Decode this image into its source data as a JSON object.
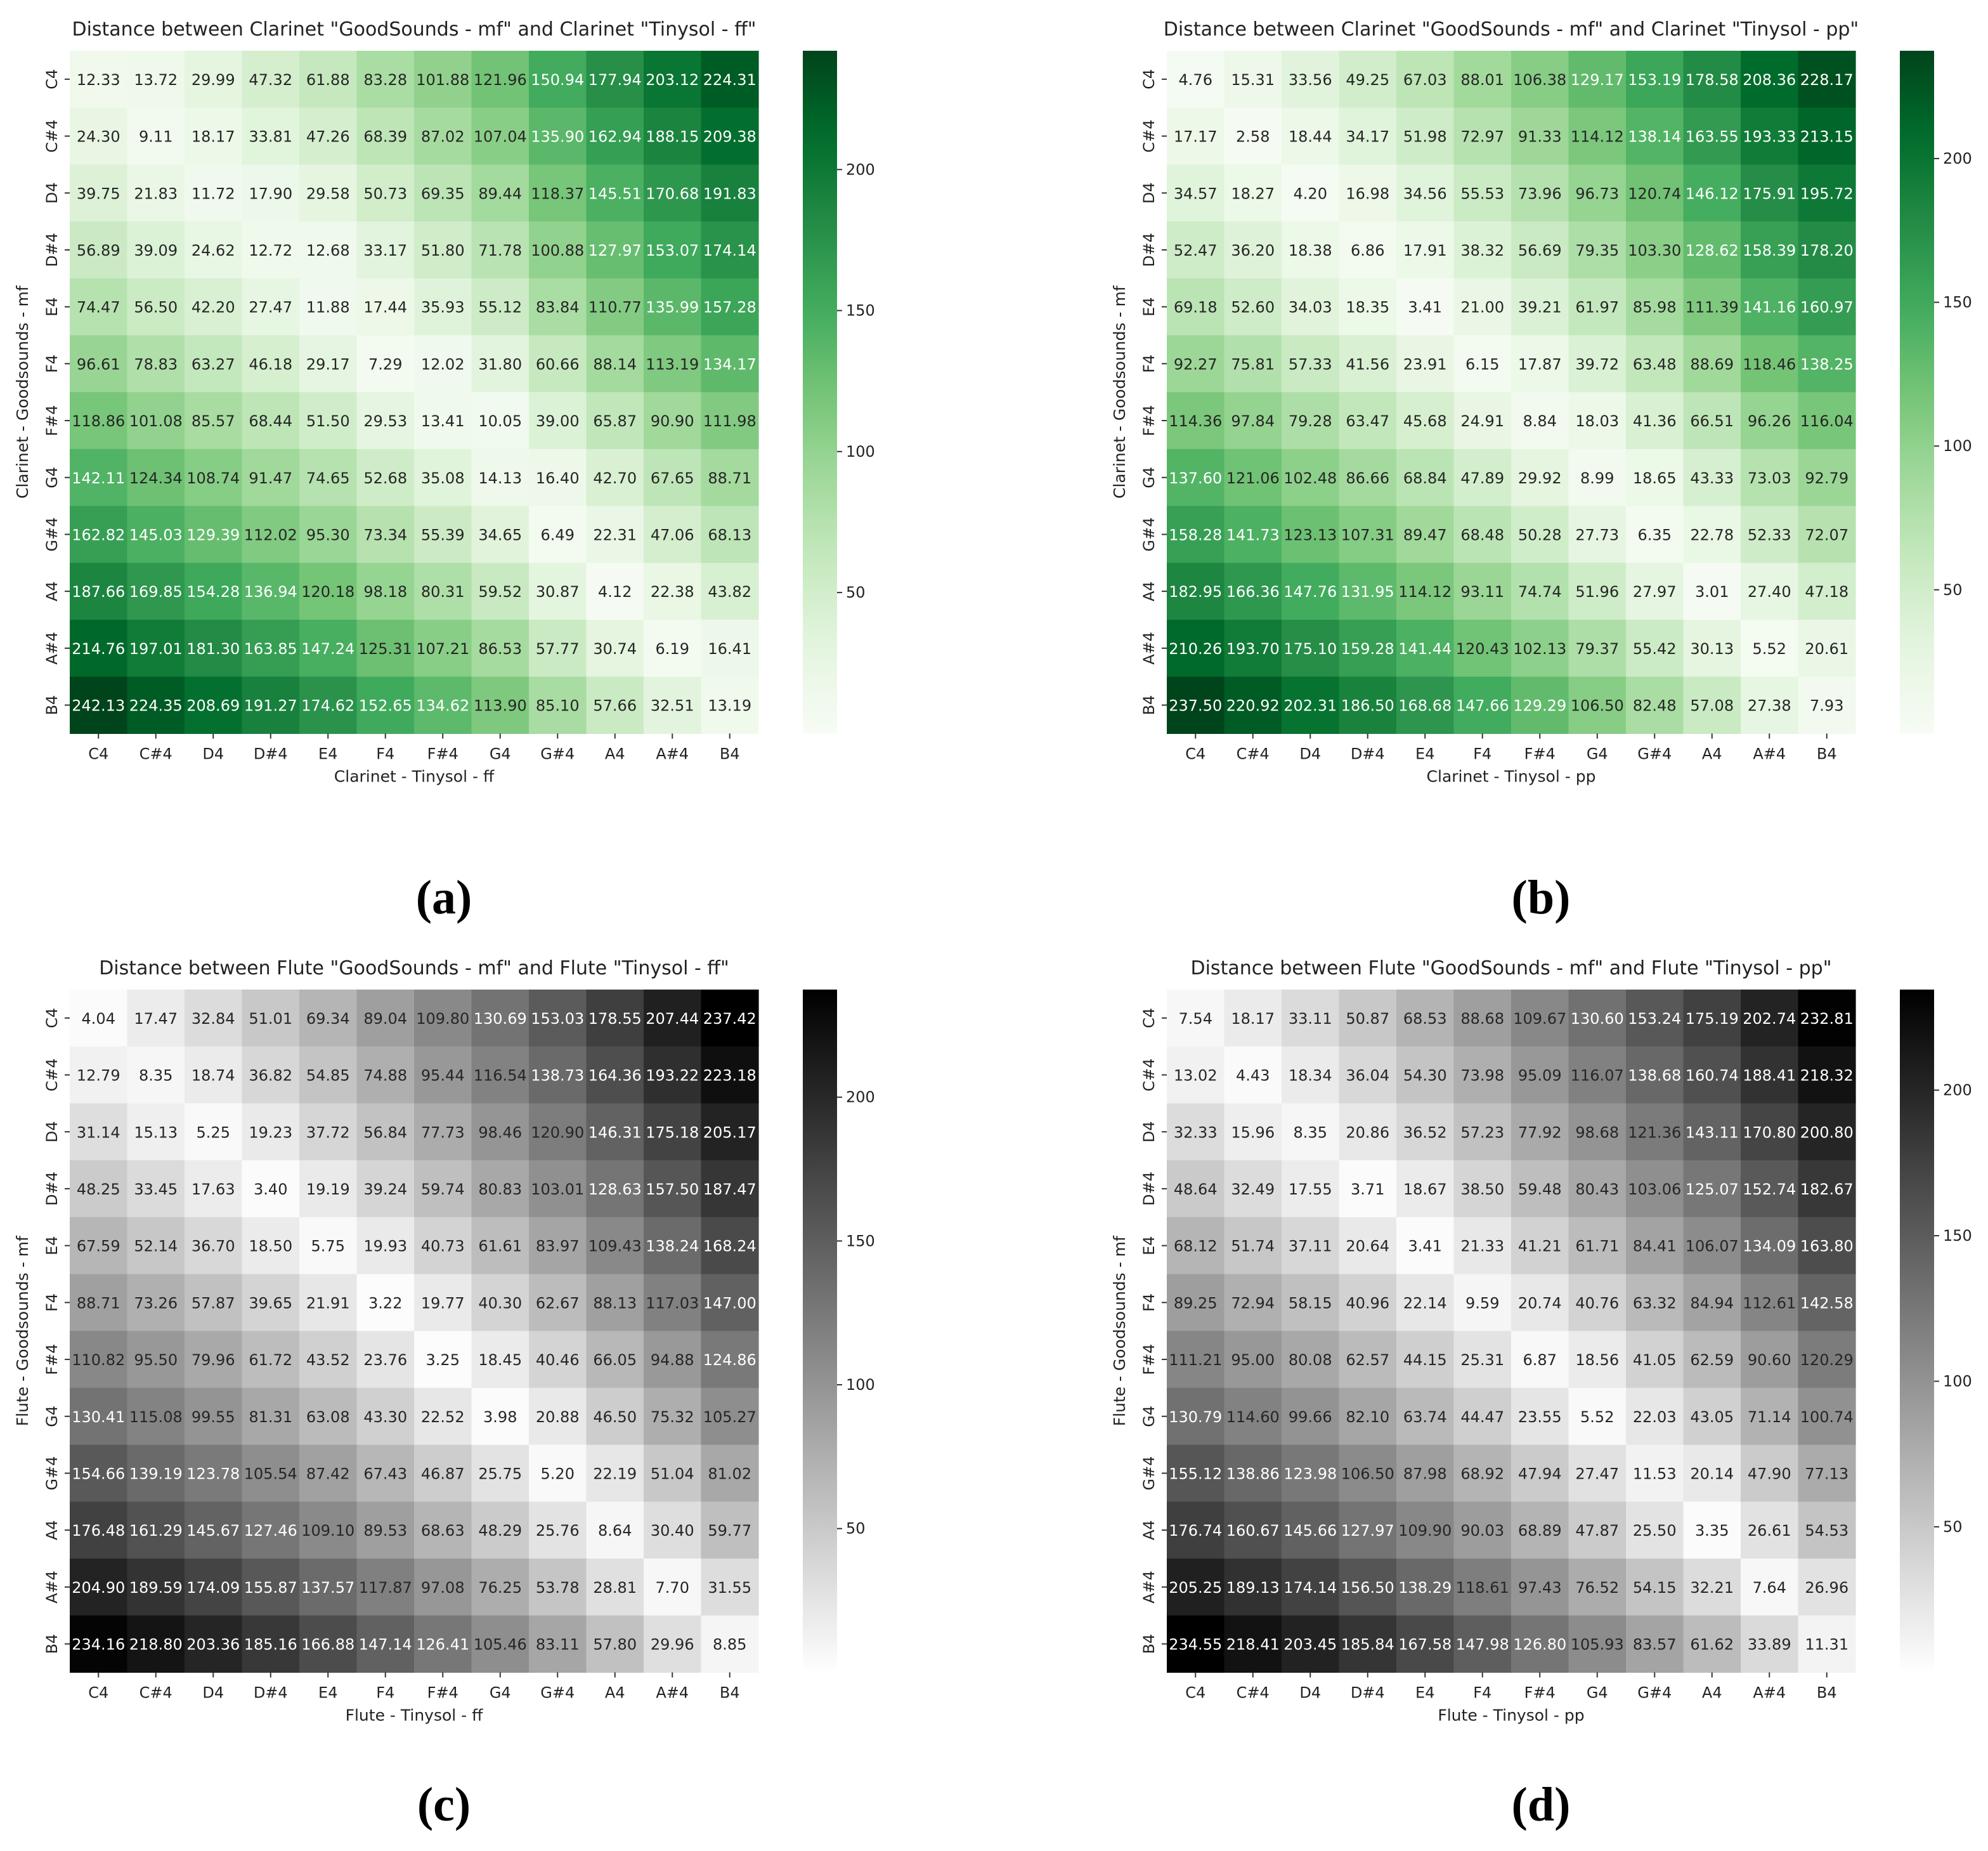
{
  "figure": {
    "panel_labels": [
      "(a)",
      "(b)",
      "(c)",
      "(d)"
    ]
  },
  "chart_data": [
    {
      "type": "heatmap",
      "title": "Distance between  Clarinet \"GoodSounds - mf\" and Clarinet \"Tinysol - ff\"",
      "xlabel": "Clarinet - Tinysol - ff",
      "ylabel": "Clarinet - Goodsounds - mf",
      "x_categories": [
        "C4",
        "C#4",
        "D4",
        "D#4",
        "E4",
        "F4",
        "F#4",
        "G4",
        "G#4",
        "A4",
        "A#4",
        "B4"
      ],
      "y_categories": [
        "C4",
        "C#4",
        "D4",
        "D#4",
        "E4",
        "F4",
        "F#4",
        "G4",
        "G#4",
        "A4",
        "A#4",
        "B4"
      ],
      "colormap": "Greens",
      "color_low": "#f7fcf5",
      "color_high": "#00441b",
      "vmin": 0,
      "vmax": 242.13,
      "colorbar_ticks": [
        50,
        100,
        150,
        200
      ],
      "values": [
        [
          12.33,
          13.72,
          29.99,
          47.32,
          61.88,
          83.28,
          101.88,
          121.96,
          150.94,
          177.94,
          203.12,
          224.31
        ],
        [
          24.3,
          9.11,
          18.17,
          33.81,
          47.26,
          68.39,
          87.02,
          107.04,
          135.9,
          162.94,
          188.15,
          209.38
        ],
        [
          39.75,
          21.83,
          11.72,
          17.9,
          29.58,
          50.73,
          69.35,
          89.44,
          118.37,
          145.51,
          170.68,
          191.83
        ],
        [
          56.89,
          39.09,
          24.62,
          12.72,
          12.68,
          33.17,
          51.8,
          71.78,
          100.88,
          127.97,
          153.07,
          174.14
        ],
        [
          74.47,
          56.5,
          42.2,
          27.47,
          11.88,
          17.44,
          35.93,
          55.12,
          83.84,
          110.77,
          135.99,
          157.28
        ],
        [
          96.61,
          78.83,
          63.27,
          46.18,
          29.17,
          7.29,
          12.02,
          31.8,
          60.66,
          88.14,
          113.19,
          134.17
        ],
        [
          118.86,
          101.08,
          85.57,
          68.44,
          51.5,
          29.53,
          13.41,
          10.05,
          39.0,
          65.87,
          90.9,
          111.98
        ],
        [
          142.11,
          124.34,
          108.74,
          91.47,
          74.65,
          52.68,
          35.08,
          14.13,
          16.4,
          42.7,
          67.65,
          88.71
        ],
        [
          162.82,
          145.03,
          129.39,
          112.02,
          95.3,
          73.34,
          55.39,
          34.65,
          6.49,
          22.31,
          47.06,
          68.13
        ],
        [
          187.66,
          169.85,
          154.28,
          136.94,
          120.18,
          98.18,
          80.31,
          59.52,
          30.87,
          4.12,
          22.38,
          43.82
        ],
        [
          214.76,
          197.01,
          181.3,
          163.85,
          147.24,
          125.31,
          107.21,
          86.53,
          57.77,
          30.74,
          6.19,
          16.41
        ],
        [
          242.13,
          224.35,
          208.69,
          191.27,
          174.62,
          152.65,
          134.62,
          113.9,
          85.1,
          57.66,
          32.51,
          13.19
        ]
      ]
    },
    {
      "type": "heatmap",
      "title": "Distance between  Clarinet \"GoodSounds - mf\" and Clarinet \"Tinysol - pp\"",
      "xlabel": "Clarinet - Tinysol - pp",
      "ylabel": "Clarinet - Goodsounds - mf",
      "x_categories": [
        "C4",
        "C#4",
        "D4",
        "D#4",
        "E4",
        "F4",
        "F#4",
        "G4",
        "G#4",
        "A4",
        "A#4",
        "B4"
      ],
      "y_categories": [
        "C4",
        "C#4",
        "D4",
        "D#4",
        "E4",
        "F4",
        "F#4",
        "G4",
        "G#4",
        "A4",
        "A#4",
        "B4"
      ],
      "colormap": "Greens",
      "color_low": "#f7fcf5",
      "color_high": "#00441b",
      "vmin": 0,
      "vmax": 237.5,
      "colorbar_ticks": [
        50,
        100,
        150,
        200
      ],
      "values": [
        [
          4.76,
          15.31,
          33.56,
          49.25,
          67.03,
          88.01,
          106.38,
          129.17,
          153.19,
          178.58,
          208.36,
          228.17
        ],
        [
          17.17,
          2.58,
          18.44,
          34.17,
          51.98,
          72.97,
          91.33,
          114.12,
          138.14,
          163.55,
          193.33,
          213.15
        ],
        [
          34.57,
          18.27,
          4.2,
          16.98,
          34.56,
          55.53,
          73.96,
          96.73,
          120.74,
          146.12,
          175.91,
          195.72
        ],
        [
          52.47,
          36.2,
          18.38,
          6.86,
          17.91,
          38.32,
          56.69,
          79.35,
          103.3,
          128.62,
          158.39,
          178.2
        ],
        [
          69.18,
          52.6,
          34.03,
          18.35,
          3.41,
          21.0,
          39.21,
          61.97,
          85.98,
          111.39,
          141.16,
          160.97
        ],
        [
          92.27,
          75.81,
          57.33,
          41.56,
          23.91,
          6.15,
          17.87,
          39.72,
          63.48,
          88.69,
          118.46,
          138.25
        ],
        [
          114.36,
          97.84,
          79.28,
          63.47,
          45.68,
          24.91,
          8.84,
          18.03,
          41.36,
          66.51,
          96.26,
          116.04
        ],
        [
          137.6,
          121.06,
          102.48,
          86.66,
          68.84,
          47.89,
          29.92,
          8.99,
          18.65,
          43.33,
          73.03,
          92.79
        ],
        [
          158.28,
          141.73,
          123.13,
          107.31,
          89.47,
          68.48,
          50.28,
          27.73,
          6.35,
          22.78,
          52.33,
          72.07
        ],
        [
          182.95,
          166.36,
          147.76,
          131.95,
          114.12,
          93.11,
          74.74,
          51.96,
          27.97,
          3.01,
          27.4,
          47.18
        ],
        [
          210.26,
          193.7,
          175.1,
          159.28,
          141.44,
          120.43,
          102.13,
          79.37,
          55.42,
          30.13,
          5.52,
          20.61
        ],
        [
          237.5,
          220.92,
          202.31,
          186.5,
          168.68,
          147.66,
          129.29,
          106.5,
          82.48,
          57.08,
          27.38,
          7.93
        ]
      ]
    },
    {
      "type": "heatmap",
      "title": "Distance between  Flute \"GoodSounds - mf\" and Flute \"Tinysol - ff\"",
      "xlabel": "Flute - Tinysol - ff",
      "ylabel": "Flute - Goodsounds - mf",
      "x_categories": [
        "C4",
        "C#4",
        "D4",
        "D#4",
        "E4",
        "F4",
        "F#4",
        "G4",
        "G#4",
        "A4",
        "A#4",
        "B4"
      ],
      "y_categories": [
        "C4",
        "C#4",
        "D4",
        "D#4",
        "E4",
        "F4",
        "F#4",
        "G4",
        "G#4",
        "A4",
        "A#4",
        "B4"
      ],
      "colormap": "Greys",
      "color_low": "#ffffff",
      "color_high": "#000000",
      "vmin": 0,
      "vmax": 237.42,
      "colorbar_ticks": [
        50,
        100,
        150,
        200
      ],
      "values": [
        [
          4.04,
          17.47,
          32.84,
          51.01,
          69.34,
          89.04,
          109.8,
          130.69,
          153.03,
          178.55,
          207.44,
          237.42
        ],
        [
          12.79,
          8.35,
          18.74,
          36.82,
          54.85,
          74.88,
          95.44,
          116.54,
          138.73,
          164.36,
          193.22,
          223.18
        ],
        [
          31.14,
          15.13,
          5.25,
          19.23,
          37.72,
          56.84,
          77.73,
          98.46,
          120.9,
          146.31,
          175.18,
          205.17
        ],
        [
          48.25,
          33.45,
          17.63,
          3.4,
          19.19,
          39.24,
          59.74,
          80.83,
          103.01,
          128.63,
          157.5,
          187.47
        ],
        [
          67.59,
          52.14,
          36.7,
          18.5,
          5.75,
          19.93,
          40.73,
          61.61,
          83.97,
          109.43,
          138.24,
          168.24
        ],
        [
          88.71,
          73.26,
          57.87,
          39.65,
          21.91,
          3.22,
          19.77,
          40.3,
          62.67,
          88.13,
          117.03,
          147.0
        ],
        [
          110.82,
          95.5,
          79.96,
          61.72,
          43.52,
          23.76,
          3.25,
          18.45,
          40.46,
          66.05,
          94.88,
          124.86
        ],
        [
          130.41,
          115.08,
          99.55,
          81.31,
          63.08,
          43.3,
          22.52,
          3.98,
          20.88,
          46.5,
          75.32,
          105.27
        ],
        [
          154.66,
          139.19,
          123.78,
          105.54,
          87.42,
          67.43,
          46.87,
          25.75,
          5.2,
          22.19,
          51.04,
          81.02
        ],
        [
          176.48,
          161.29,
          145.67,
          127.46,
          109.1,
          89.53,
          68.63,
          48.29,
          25.76,
          8.64,
          30.4,
          59.77
        ],
        [
          204.9,
          189.59,
          174.09,
          155.87,
          137.57,
          117.87,
          97.08,
          76.25,
          53.78,
          28.81,
          7.7,
          31.55
        ],
        [
          234.16,
          218.8,
          203.36,
          185.16,
          166.88,
          147.14,
          126.41,
          105.46,
          83.11,
          57.8,
          29.96,
          8.85
        ]
      ]
    },
    {
      "type": "heatmap",
      "title": "Distance between  Flute \"GoodSounds - mf\" and Flute \"Tinysol - pp\"",
      "xlabel": "Flute - Tinysol - pp",
      "ylabel": "Flute - Goodsounds - mf",
      "x_categories": [
        "C4",
        "C#4",
        "D4",
        "D#4",
        "E4",
        "F4",
        "F#4",
        "G4",
        "G#4",
        "A4",
        "A#4",
        "B4"
      ],
      "y_categories": [
        "C4",
        "C#4",
        "D4",
        "D#4",
        "E4",
        "F4",
        "F#4",
        "G4",
        "G#4",
        "A4",
        "A#4",
        "B4"
      ],
      "colormap": "Greys",
      "color_low": "#ffffff",
      "color_high": "#000000",
      "vmin": 0,
      "vmax": 234.55,
      "colorbar_ticks": [
        50,
        100,
        150,
        200
      ],
      "values": [
        [
          7.54,
          18.17,
          33.11,
          50.87,
          68.53,
          88.68,
          109.67,
          130.6,
          153.24,
          175.19,
          202.74,
          232.81
        ],
        [
          13.02,
          4.43,
          18.34,
          36.04,
          54.3,
          73.98,
          95.09,
          116.07,
          138.68,
          160.74,
          188.41,
          218.32
        ],
        [
          32.33,
          15.96,
          8.35,
          20.86,
          36.52,
          57.23,
          77.92,
          98.68,
          121.36,
          143.11,
          170.8,
          200.8
        ],
        [
          48.64,
          32.49,
          17.55,
          3.71,
          18.67,
          38.5,
          59.48,
          80.43,
          103.06,
          125.07,
          152.74,
          182.67
        ],
        [
          68.12,
          51.74,
          37.11,
          20.64,
          3.41,
          21.33,
          41.21,
          61.71,
          84.41,
          106.07,
          134.09,
          163.8
        ],
        [
          89.25,
          72.94,
          58.15,
          40.96,
          22.14,
          9.59,
          20.74,
          40.76,
          63.32,
          84.94,
          112.61,
          142.58
        ],
        [
          111.21,
          95.0,
          80.08,
          62.57,
          44.15,
          25.31,
          6.87,
          18.56,
          41.05,
          62.59,
          90.6,
          120.29
        ],
        [
          130.79,
          114.6,
          99.66,
          82.1,
          63.74,
          44.47,
          23.55,
          5.52,
          22.03,
          43.05,
          71.14,
          100.74
        ],
        [
          155.12,
          138.86,
          123.98,
          106.5,
          87.98,
          68.92,
          47.94,
          27.47,
          11.53,
          20.14,
          47.9,
          77.13
        ],
        [
          176.74,
          160.67,
          145.66,
          127.97,
          109.9,
          90.03,
          68.89,
          47.87,
          25.5,
          3.35,
          26.61,
          54.53
        ],
        [
          205.25,
          189.13,
          174.14,
          156.5,
          138.29,
          118.61,
          97.43,
          76.52,
          54.15,
          32.21,
          7.64,
          26.96
        ],
        [
          234.55,
          218.41,
          203.45,
          185.84,
          167.58,
          147.98,
          126.8,
          105.93,
          83.57,
          61.62,
          33.89,
          11.31
        ]
      ]
    }
  ]
}
